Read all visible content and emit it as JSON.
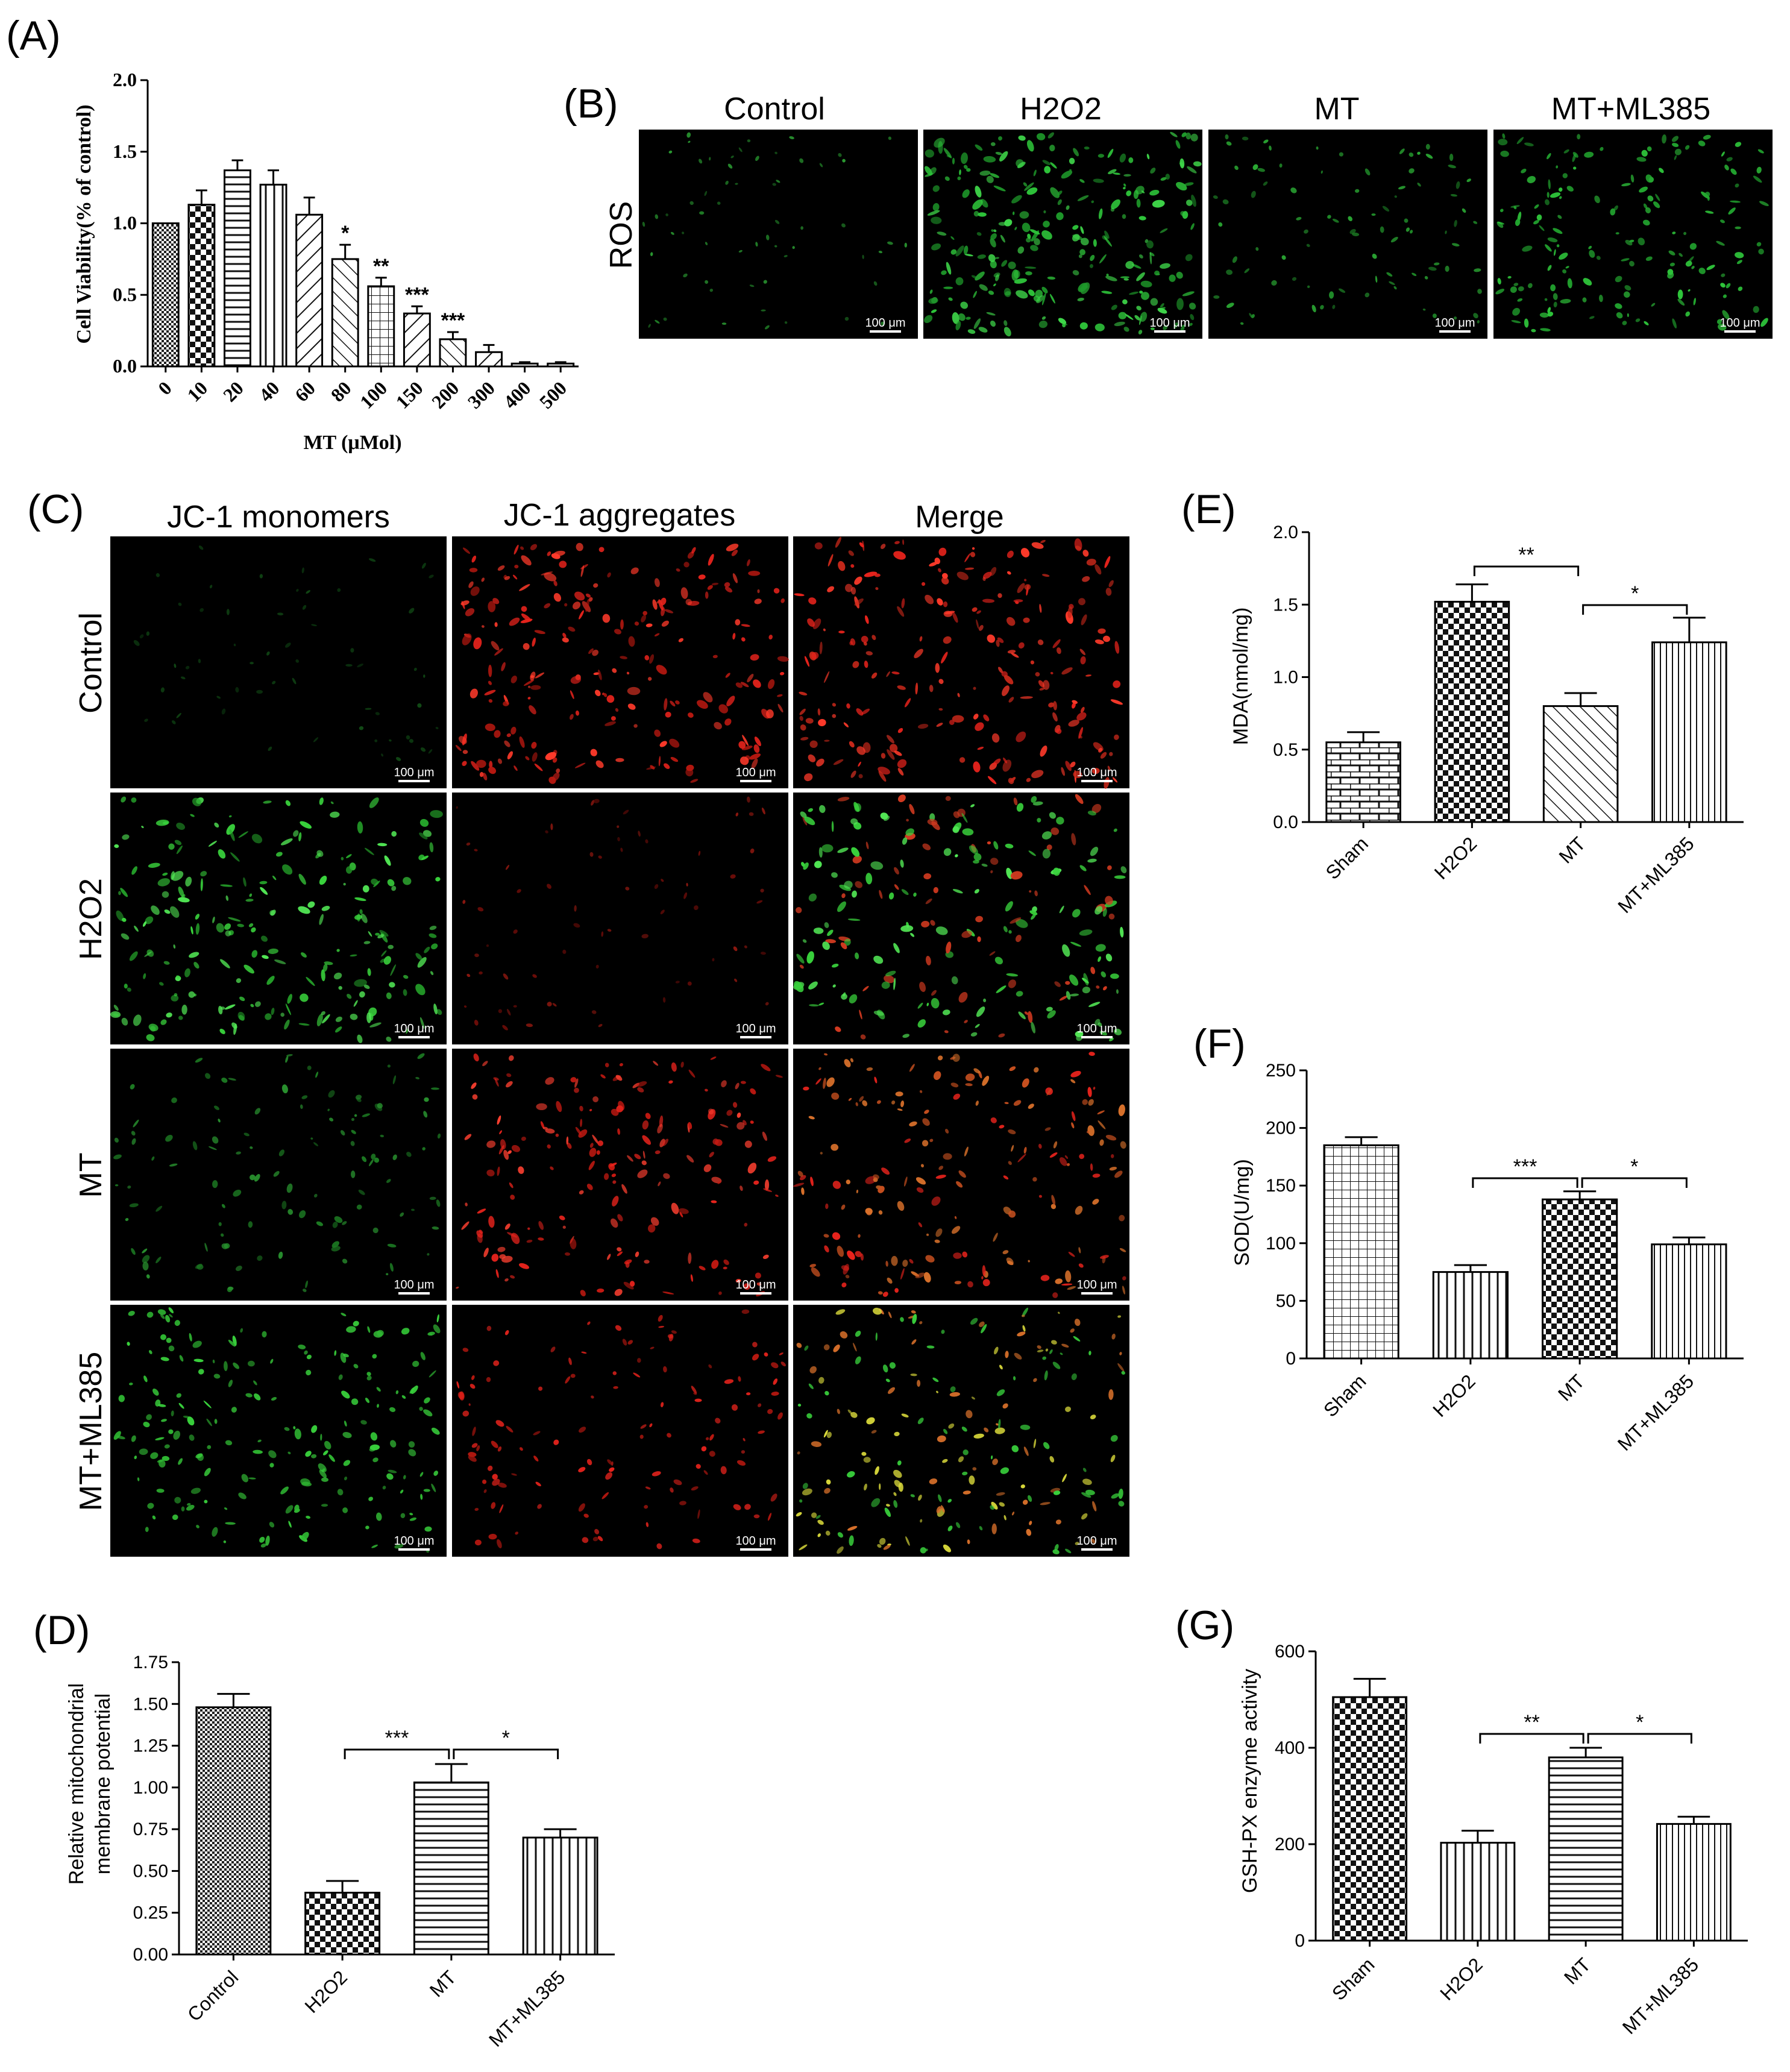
{
  "panels": {
    "A": "(A)",
    "B": "(B)",
    "C": "(C)",
    "D": "(D)",
    "E": "(E)",
    "F": "(F)",
    "G": "(G)"
  },
  "ros": {
    "row_label": "ROS",
    "columns": [
      "Control",
      "H2O2",
      "MT",
      "MT+ML385"
    ],
    "scale": "100 μm"
  },
  "jc1": {
    "columns": [
      "JC-1 monomers",
      "JC-1 aggregates",
      "Merge"
    ],
    "rows": [
      "Control",
      "H2O2",
      "MT",
      "MT+ML385"
    ],
    "scale": "100 μm"
  },
  "colors": {
    "ros_green": "#2ec43a",
    "jc_red": "#e8231c",
    "jc_green": "#39d23c",
    "merge_orange": "#d8702a",
    "merge_yellow": "#d8d83a"
  },
  "chart_data": [
    {
      "id": "A",
      "type": "bar",
      "title": "",
      "xlabel": "MT (μMol)",
      "ylabel": "Cell Viability(% of control)",
      "categories": [
        "0",
        "10",
        "20",
        "40",
        "60",
        "80",
        "100",
        "150",
        "200",
        "300",
        "400",
        "500"
      ],
      "values": [
        1.0,
        1.13,
        1.37,
        1.27,
        1.06,
        0.75,
        0.56,
        0.37,
        0.19,
        0.1,
        0.02,
        0.02
      ],
      "errors": [
        0.0,
        0.1,
        0.07,
        0.1,
        0.12,
        0.1,
        0.06,
        0.05,
        0.05,
        0.05,
        0.01,
        0.01
      ],
      "ylim": [
        0,
        2.0
      ],
      "yticks": [
        "0.0",
        "0.5",
        "1.0",
        "1.5",
        "2.0"
      ],
      "significance": [
        "",
        "",
        "",
        "",
        "",
        "*",
        "**",
        "***",
        "***",
        "",
        "",
        ""
      ]
    },
    {
      "id": "D",
      "type": "bar",
      "title": "",
      "xlabel": "",
      "ylabel": "Relative mitochondrial membrane potential",
      "categories": [
        "Control",
        "H2O2",
        "MT",
        "MT+ML385"
      ],
      "values": [
        1.48,
        0.37,
        1.03,
        0.7
      ],
      "errors": [
        0.08,
        0.07,
        0.11,
        0.05
      ],
      "ylim": [
        0,
        1.75
      ],
      "yticks": [
        "0.00",
        "0.25",
        "0.50",
        "0.75",
        "1.00",
        "1.25",
        "1.50",
        "1.75"
      ],
      "comparisons": [
        {
          "from": 1,
          "to": 2,
          "label": "***"
        },
        {
          "from": 2,
          "to": 3,
          "label": "*"
        }
      ]
    },
    {
      "id": "E",
      "type": "bar",
      "title": "",
      "xlabel": "",
      "ylabel": "MDA(nmol/mg)",
      "categories": [
        "Sham",
        "H2O2",
        "MT",
        "MT+ML385"
      ],
      "values": [
        0.55,
        1.52,
        0.8,
        1.24
      ],
      "errors": [
        0.07,
        0.12,
        0.09,
        0.17
      ],
      "ylim": [
        0,
        2.0
      ],
      "yticks": [
        "0.0",
        "0.5",
        "1.0",
        "1.5",
        "2.0"
      ],
      "comparisons": [
        {
          "from": 1,
          "to": 2,
          "label": "**"
        },
        {
          "from": 2,
          "to": 3,
          "label": "*"
        }
      ]
    },
    {
      "id": "F",
      "type": "bar",
      "title": "",
      "xlabel": "",
      "ylabel": "SOD(U/mg)",
      "categories": [
        "Sham",
        "H2O2",
        "MT",
        "MT+ML385"
      ],
      "values": [
        185,
        75,
        138,
        99
      ],
      "errors": [
        7,
        6,
        7,
        6
      ],
      "ylim": [
        0,
        250
      ],
      "yticks": [
        "0",
        "50",
        "100",
        "150",
        "200",
        "250"
      ],
      "comparisons": [
        {
          "from": 1,
          "to": 2,
          "label": "***"
        },
        {
          "from": 2,
          "to": 3,
          "label": "*"
        }
      ]
    },
    {
      "id": "G",
      "type": "bar",
      "title": "",
      "xlabel": "",
      "ylabel": "GSH-PX  enzyme  activity",
      "categories": [
        "Sham",
        "H2O2",
        "MT",
        "MT+ML385"
      ],
      "values": [
        505,
        203,
        380,
        242
      ],
      "errors": [
        38,
        25,
        20,
        15
      ],
      "ylim": [
        0,
        600
      ],
      "yticks": [
        "0",
        "200",
        "400",
        "600"
      ],
      "comparisons": [
        {
          "from": 1,
          "to": 2,
          "label": "**"
        },
        {
          "from": 2,
          "to": 3,
          "label": "*"
        }
      ]
    }
  ]
}
